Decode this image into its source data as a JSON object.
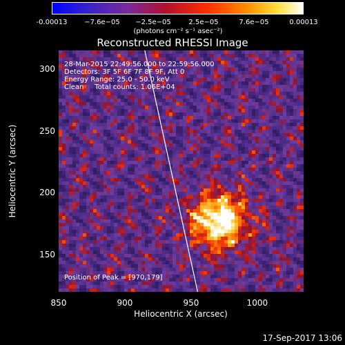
{
  "colorbar": {
    "ticks": [
      "-0.00013",
      "−7.6e−05",
      "−2.5e−05",
      "2.5e−05",
      "7.6e−05",
      "0.00013"
    ],
    "unit": "(photons cm⁻² s⁻¹ asec⁻²)"
  },
  "chart_data": {
    "type": "heatmap",
    "title": "Reconstructed RHESSI Image",
    "xlabel": "Heliocentric X (arcsec)",
    "ylabel": "Heliocentric Y (arcsec)",
    "xlim": [
      850,
      1035
    ],
    "ylim": [
      120,
      315
    ],
    "xticks": [
      "850",
      "900",
      "950",
      "1000"
    ],
    "yticks": [
      "150",
      "200",
      "250",
      "300"
    ],
    "peak": [
      970,
      179
    ],
    "limb_x_at_ylim": [
      915,
      955
    ]
  },
  "annotations": {
    "line1": "28-Mar-2015 22:49:56.000 to 22:59:56.000",
    "line2": "Detectors: 3F 5F 6F 7F 8F 9F, Att 0",
    "line3": "Energy Range: 25.0 - 50.0 keV",
    "line4": "Clean     Total counts: 1.06E+04",
    "peak_label": "Position of Peak = [970,179]"
  },
  "timestamp": "17-Sep-2017 13:06"
}
